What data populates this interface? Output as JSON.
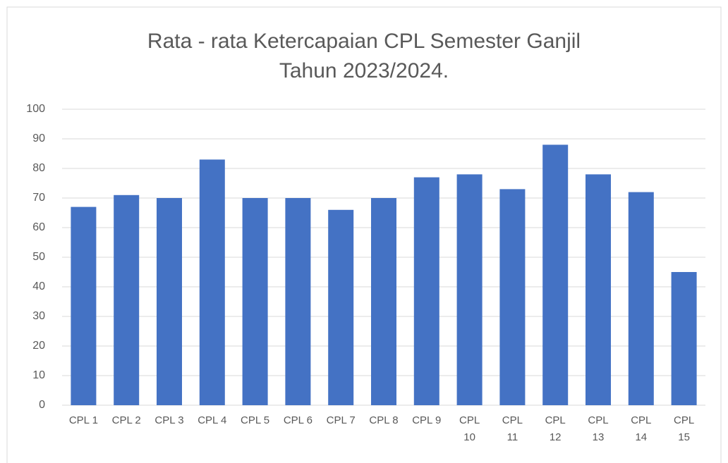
{
  "chart_data": {
    "type": "bar",
    "title": "Rata - rata Ketercapaian CPL Semester Ganjil Tahun 2023/2024.",
    "categories": [
      "CPL 1",
      "CPL 2",
      "CPL 3",
      "CPL 4",
      "CPL 5",
      "CPL 6",
      "CPL 7",
      "CPL 8",
      "CPL 9",
      "CPL 10",
      "CPL 11",
      "CPL 12",
      "CPL 13",
      "CPL 14",
      "CPL 15"
    ],
    "values": [
      67,
      71,
      70,
      83,
      70,
      70,
      66,
      70,
      77,
      78,
      73,
      88,
      78,
      72,
      45
    ],
    "color": "#4472c4",
    "ylim": [
      0,
      100
    ],
    "yticks": [
      0,
      10,
      20,
      30,
      40,
      50,
      60,
      70,
      80,
      90,
      100
    ],
    "grid": true
  }
}
